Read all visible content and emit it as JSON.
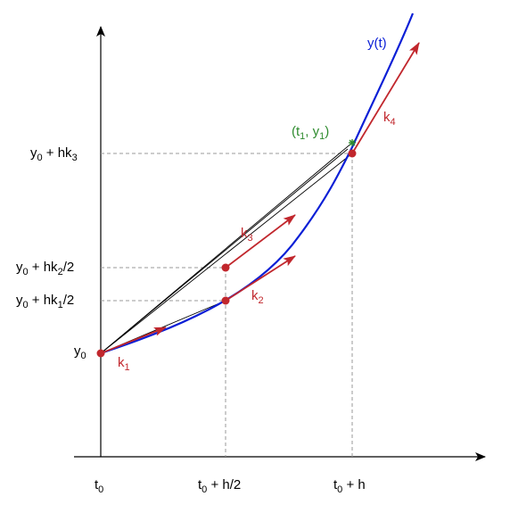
{
  "diagram": {
    "curve_label": "y(t)",
    "point_label": {
      "open": "(t",
      "sub1": "1",
      "mid": ", y",
      "sub2": "1",
      "close": ")"
    },
    "y_labels": {
      "y0": {
        "main": "y",
        "sub": "0"
      },
      "hk1": {
        "y": "y",
        "ysub": "0",
        "plus": " + hk",
        "ksub": "1",
        "tail": "/2"
      },
      "hk2": {
        "y": "y",
        "ysub": "0",
        "plus": " + hk",
        "ksub": "2",
        "tail": "/2"
      },
      "hk3": {
        "y": "y",
        "ysub": "0",
        "plus": " + hk",
        "ksub": "3",
        "tail": ""
      }
    },
    "x_labels": {
      "t0": {
        "main": "t",
        "sub": "0"
      },
      "half": {
        "t": "t",
        "tsub": "0",
        "tail": " + h/2"
      },
      "full": {
        "t": "t",
        "tsub": "0",
        "tail": " + h"
      }
    },
    "slopes": [
      {
        "main": "k",
        "sub": "1"
      },
      {
        "main": "k",
        "sub": "2"
      },
      {
        "main": "k",
        "sub": "3"
      },
      {
        "main": "k",
        "sub": "4"
      }
    ],
    "colors": {
      "curve": "#0b1fd6",
      "slope": "#c1272d",
      "point": "#2e8b2e",
      "guide": "#999999"
    }
  }
}
